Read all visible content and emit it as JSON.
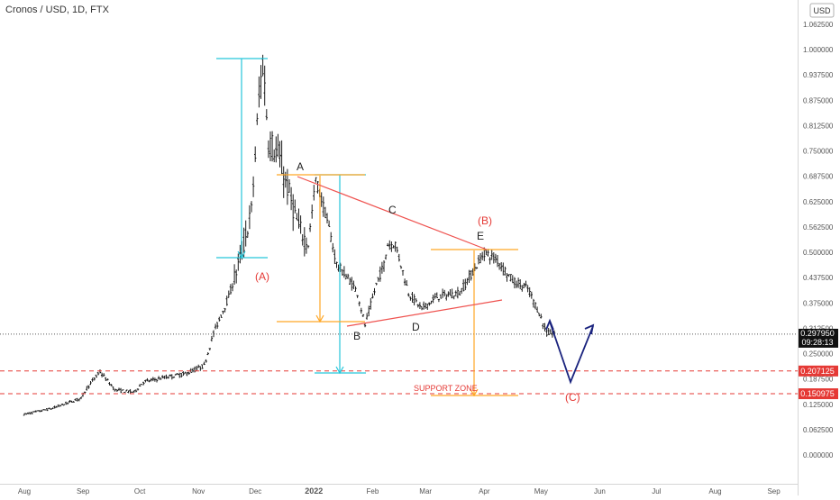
{
  "header": {
    "title": "Cronos / USD, 1D, FTX"
  },
  "currency_badge": "USD",
  "chart_data": {
    "type": "ohlc",
    "title": "Cronos / USD, 1D, FTX",
    "xlabel": "",
    "ylabel": "",
    "ylim": [
      0,
      1.09
    ],
    "y_ticks": [
      "0.000000",
      "0.062500",
      "0.125000",
      "0.187500",
      "0.250000",
      "0.312500",
      "0.375000",
      "0.437500",
      "0.500000",
      "0.562500",
      "0.625000",
      "0.687500",
      "0.750000",
      "0.812500",
      "0.875000",
      "0.937500",
      "1.000000",
      "1.062500"
    ],
    "x_ticks": [
      "Aug",
      "Sep",
      "Oct",
      "Nov",
      "Dec",
      "2022",
      "Feb",
      "Mar",
      "Apr",
      "May",
      "Jun",
      "Jul",
      "Aug",
      "Sep"
    ],
    "x_tick_days": [
      0,
      31,
      61,
      92,
      122,
      153,
      184,
      212,
      243,
      273,
      304,
      334,
      365,
      396
    ],
    "anchors": [
      [
        0,
        0.1
      ],
      [
        15,
        0.115
      ],
      [
        30,
        0.14
      ],
      [
        33,
        0.165
      ],
      [
        40,
        0.205
      ],
      [
        48,
        0.16
      ],
      [
        58,
        0.155
      ],
      [
        63,
        0.18
      ],
      [
        73,
        0.19
      ],
      [
        85,
        0.2
      ],
      [
        95,
        0.22
      ],
      [
        100,
        0.3
      ],
      [
        108,
        0.39
      ],
      [
        115,
        0.5
      ],
      [
        120,
        0.6
      ],
      [
        124,
        0.88
      ],
      [
        126,
        0.97
      ],
      [
        129,
        0.78
      ],
      [
        134,
        0.74
      ],
      [
        139,
        0.66
      ],
      [
        145,
        0.56
      ],
      [
        150,
        0.52
      ],
      [
        154,
        0.68
      ],
      [
        160,
        0.58
      ],
      [
        165,
        0.47
      ],
      [
        172,
        0.43
      ],
      [
        176,
        0.4
      ],
      [
        180,
        0.32
      ],
      [
        186,
        0.42
      ],
      [
        190,
        0.47
      ],
      [
        192,
        0.52
      ],
      [
        196,
        0.52
      ],
      [
        203,
        0.4
      ],
      [
        210,
        0.36
      ],
      [
        218,
        0.39
      ],
      [
        230,
        0.4
      ],
      [
        238,
        0.46
      ],
      [
        243,
        0.5
      ],
      [
        250,
        0.48
      ],
      [
        258,
        0.43
      ],
      [
        266,
        0.41
      ],
      [
        272,
        0.35
      ],
      [
        276,
        0.3
      ],
      [
        280,
        0.3
      ]
    ],
    "last_price": "0.297950",
    "countdown": "09:28:13",
    "levels": [
      {
        "value": 0.207125,
        "label": "0.207125",
        "color": "#e53935"
      },
      {
        "value": 0.150975,
        "label": "0.150975",
        "color": "#e53935"
      }
    ],
    "annotations": [
      {
        "text": "(A)",
        "color": "#e53935"
      },
      {
        "text": "A",
        "color": "#222222"
      },
      {
        "text": "B",
        "color": "#222222"
      },
      {
        "text": "C",
        "color": "#222222"
      },
      {
        "text": "D",
        "color": "#222222"
      },
      {
        "text": "E",
        "color": "#222222"
      },
      {
        "text": "(B)",
        "color": "#e53935"
      },
      {
        "text": "(C)",
        "color": "#e53935"
      },
      {
        "text": "SUPPORT ZONE",
        "color": "#e53935"
      }
    ],
    "colors": {
      "bars": "#1a1a1a",
      "cyan": "#26c6da",
      "orange": "#ffa726",
      "triangle": "#ef5350",
      "projection": "#1a237e",
      "support": "#e53935"
    }
  }
}
